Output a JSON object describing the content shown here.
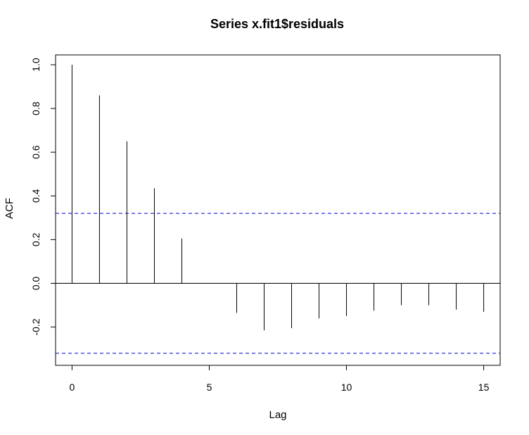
{
  "chart_data": {
    "type": "bar",
    "title": "Series  x.fit1$residuals",
    "xlabel": "Lag",
    "ylabel": "ACF",
    "x": [
      0,
      1,
      2,
      3,
      4,
      5,
      6,
      7,
      8,
      9,
      10,
      11,
      12,
      13,
      14,
      15
    ],
    "values": [
      1.0,
      0.86,
      0.65,
      0.435,
      0.205,
      0.0,
      -0.135,
      -0.215,
      -0.205,
      -0.16,
      -0.15,
      -0.125,
      -0.1,
      -0.1,
      -0.12,
      -0.13
    ],
    "confidence_bounds": [
      0.32,
      -0.32
    ],
    "xlim": [
      -0.6,
      15.6
    ],
    "ylim": [
      -0.375,
      1.045
    ],
    "x_ticks": [
      0,
      5,
      10,
      15
    ],
    "y_ticks": [
      -0.2,
      0.0,
      0.2,
      0.4,
      0.6,
      0.8,
      1.0
    ],
    "x_tick_labels": [
      "0",
      "5",
      "10",
      "15"
    ],
    "y_tick_labels": [
      "-0.2",
      "0.0",
      "0.2",
      "0.4",
      "0.6",
      "0.8",
      "1.0"
    ],
    "colors": {
      "bars": "#000000",
      "bounds": "#0000cc",
      "zero_line": "#000000",
      "frame": "#000000"
    },
    "grid": false
  }
}
